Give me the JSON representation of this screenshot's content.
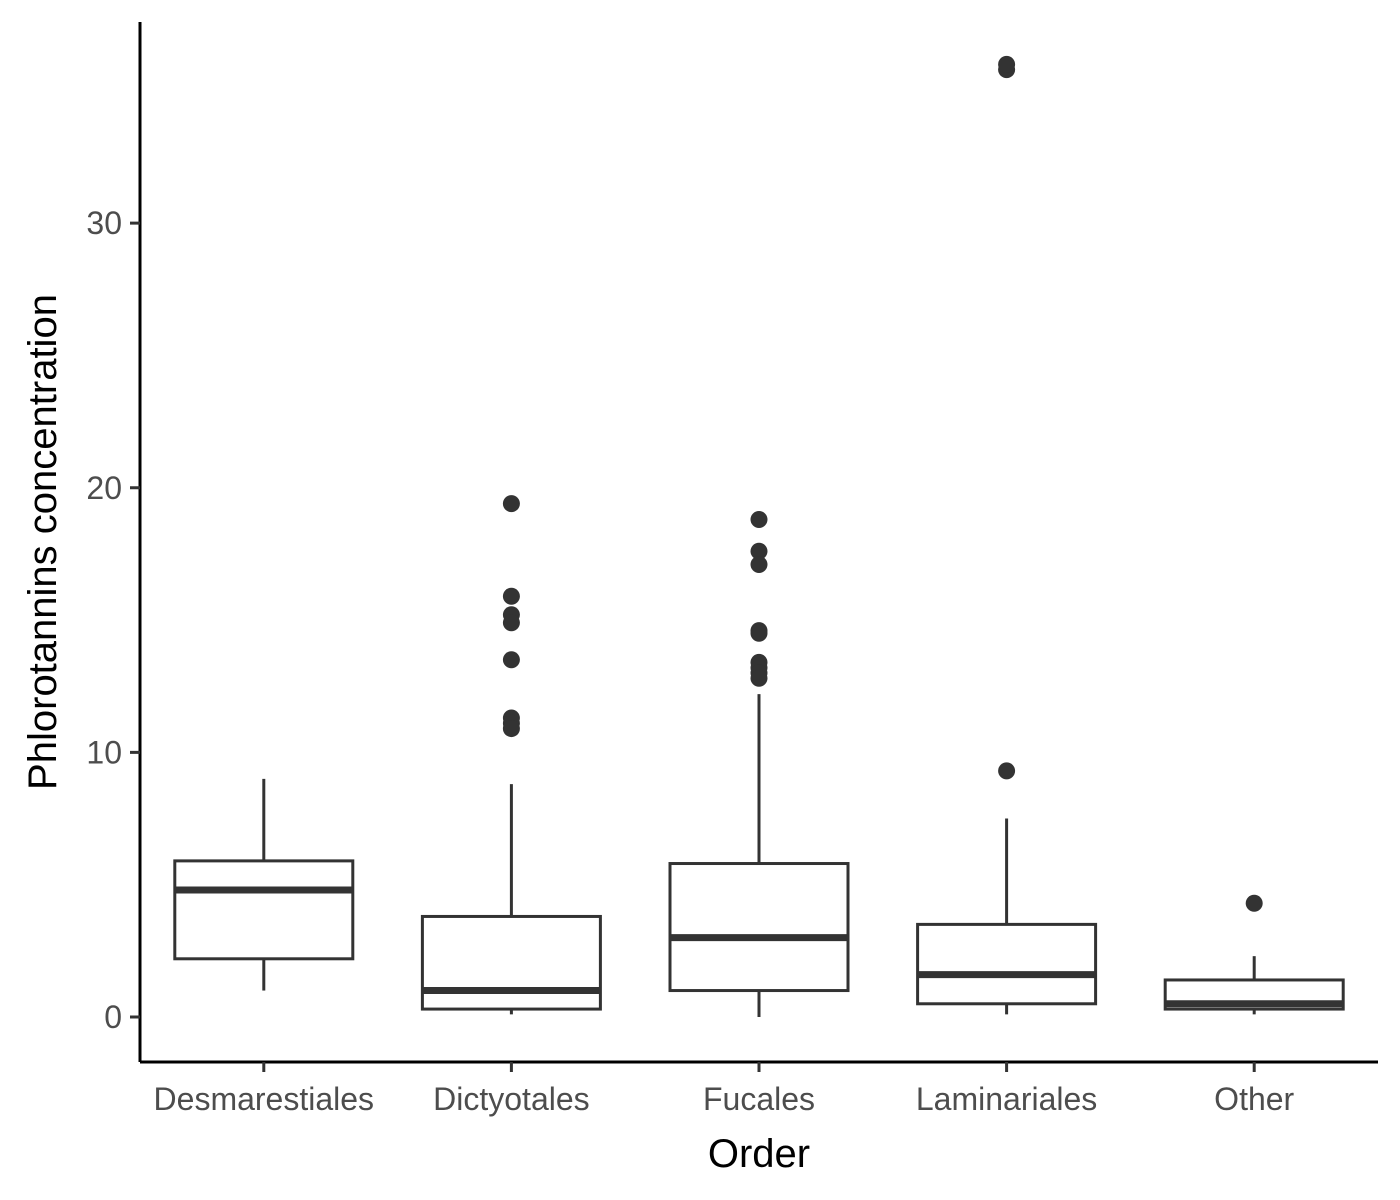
{
  "chart_data": {
    "type": "boxplot",
    "xlabel": "Order",
    "ylabel": "Phlorotannins concentration",
    "ylim": [
      -1.7,
      37.6
    ],
    "yticks": [
      0,
      10,
      20,
      30
    ],
    "grid": false,
    "colors": {
      "stroke": "#333333",
      "axis": "#000000",
      "tick_label": "#4d4d4d"
    },
    "categories": [
      "Desmarestiales",
      "Dictyotales",
      "Fucales",
      "Laminariales",
      "Other"
    ],
    "boxes": [
      {
        "category": "Desmarestiales",
        "min": 1.0,
        "q1": 2.2,
        "median": 4.8,
        "q3": 5.9,
        "max": 9.0,
        "outliers": []
      },
      {
        "category": "Dictyotales",
        "min": 0.1,
        "q1": 0.3,
        "median": 1.0,
        "q3": 3.8,
        "max": 8.8,
        "outliers": [
          19.4,
          15.9,
          15.2,
          14.9,
          13.5,
          11.3,
          11.1,
          10.9
        ]
      },
      {
        "category": "Fucales",
        "min": 0.0,
        "q1": 1.0,
        "median": 3.0,
        "q3": 5.8,
        "max": 12.2,
        "outliers": [
          18.8,
          17.6,
          17.1,
          14.6,
          14.5,
          13.4,
          13.2,
          13.0,
          12.8
        ]
      },
      {
        "category": "Laminariales",
        "min": 0.1,
        "q1": 0.5,
        "median": 1.6,
        "q3": 3.5,
        "max": 7.5,
        "outliers": [
          35.8,
          36.0,
          9.3
        ]
      },
      {
        "category": "Other",
        "min": 0.1,
        "q1": 0.3,
        "median": 0.5,
        "q3": 1.4,
        "max": 2.3,
        "outliers": [
          4.3
        ]
      }
    ]
  }
}
